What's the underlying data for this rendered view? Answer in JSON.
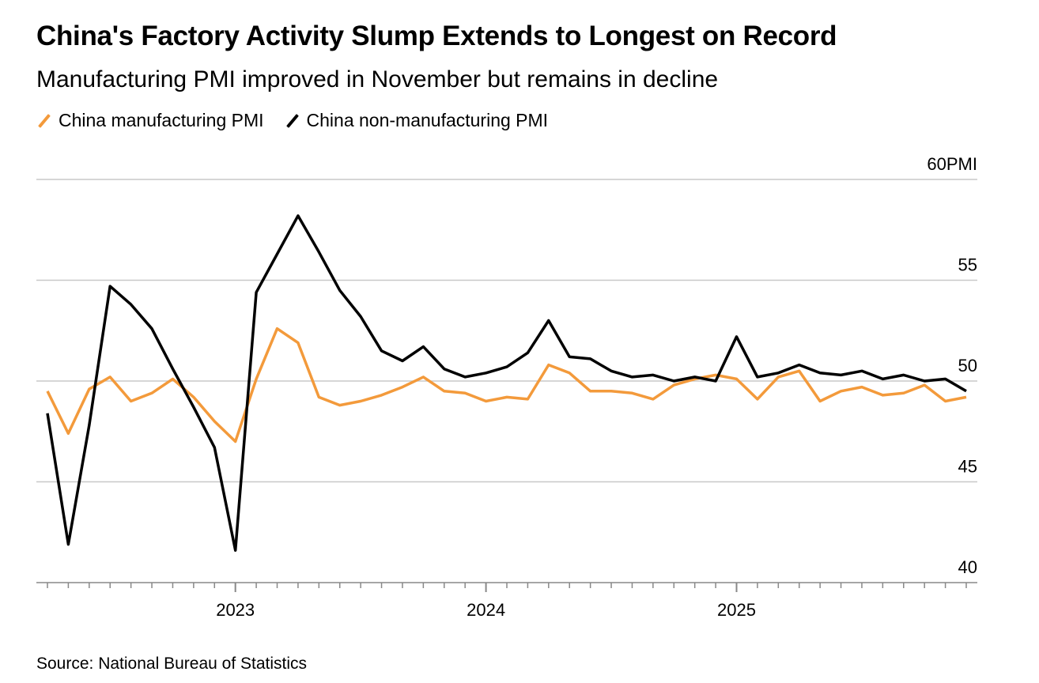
{
  "title": "China's Factory Activity Slump Extends to Longest on Record",
  "subtitle": "Manufacturing PMI improved in November but remains in decline",
  "source": "Source: National Bureau of Statistics",
  "colors": {
    "manufacturing": "#f39a3b",
    "non_manufacturing": "#000000",
    "grid": "#c8c8c8"
  },
  "chart_data": {
    "type": "line",
    "x_start": "2022-03",
    "x_end": "2025-11",
    "x_ticks": [
      {
        "label": "2023",
        "index": 9
      },
      {
        "label": "2024",
        "index": 21
      },
      {
        "label": "2025",
        "index": 33
      }
    ],
    "y_ticks": [
      "40",
      "45",
      "50",
      "55",
      "60"
    ],
    "y_unit": "PMI",
    "ylim": [
      40,
      60
    ],
    "grid": true,
    "legend_placement": "top-left",
    "series": [
      {
        "name": "China manufacturing PMI",
        "color": "#f39a3b",
        "values": [
          49.5,
          47.4,
          49.6,
          50.2,
          49.0,
          49.4,
          50.1,
          49.2,
          48.0,
          47.0,
          50.1,
          52.6,
          51.9,
          49.2,
          48.8,
          49.0,
          49.3,
          49.7,
          50.2,
          49.5,
          49.4,
          49.0,
          49.2,
          49.1,
          50.8,
          50.4,
          49.5,
          49.5,
          49.4,
          49.1,
          49.8,
          50.1,
          50.3,
          50.1,
          49.1,
          50.2,
          50.5,
          49.0,
          49.5,
          49.7,
          49.3,
          49.4,
          49.8,
          49.0,
          49.2
        ]
      },
      {
        "name": "China non-manufacturing PMI",
        "color": "#000000",
        "values": [
          48.4,
          41.9,
          47.8,
          54.7,
          53.8,
          52.6,
          50.6,
          48.7,
          46.7,
          41.6,
          54.4,
          56.3,
          58.2,
          56.4,
          54.5,
          53.2,
          51.5,
          51.0,
          51.7,
          50.6,
          50.2,
          50.4,
          50.7,
          51.4,
          53.0,
          51.2,
          51.1,
          50.5,
          50.2,
          50.3,
          50.0,
          50.2,
          50.0,
          52.2,
          50.2,
          50.4,
          50.8,
          50.4,
          50.3,
          50.5,
          50.1,
          50.3,
          50.0,
          50.1,
          49.5
        ]
      }
    ]
  }
}
